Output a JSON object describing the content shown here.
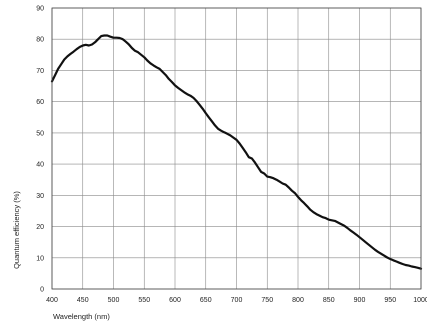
{
  "chart_data": {
    "type": "line",
    "title": "",
    "xlabel": "Wavelength (nm)",
    "ylabel": "Quantum efficiency (%)",
    "xlim": [
      400,
      1000
    ],
    "ylim": [
      0,
      90
    ],
    "x_ticks": [
      "400",
      "450",
      "500",
      "550",
      "600",
      "650",
      "700",
      "750",
      "800",
      "850",
      "900",
      "950",
      "1000"
    ],
    "y_ticks": [
      "0",
      "10",
      "20",
      "30",
      "40",
      "50",
      "60",
      "70",
      "80",
      "90"
    ],
    "grid": true,
    "line_color": "#111111",
    "series": [
      {
        "x": [
          400,
          405,
          410,
          415,
          420,
          425,
          430,
          435,
          440,
          445,
          450,
          455,
          460,
          465,
          470,
          475,
          480,
          485,
          490,
          495,
          500,
          505,
          510,
          515,
          520,
          525,
          530,
          535,
          540,
          545,
          550,
          555,
          560,
          565,
          570,
          575,
          580,
          585,
          590,
          595,
          600,
          605,
          610,
          615,
          620,
          625,
          630,
          635,
          640,
          645,
          650,
          655,
          660,
          665,
          670,
          675,
          680,
          685,
          690,
          695,
          700,
          705,
          710,
          715,
          720,
          725,
          730,
          735,
          740,
          745,
          750,
          755,
          760,
          765,
          770,
          775,
          780,
          785,
          790,
          795,
          800,
          805,
          810,
          815,
          820,
          825,
          830,
          835,
          840,
          845,
          850,
          855,
          860,
          865,
          870,
          875,
          880,
          885,
          890,
          895,
          900,
          905,
          910,
          915,
          920,
          925,
          930,
          935,
          940,
          945,
          950,
          955,
          960,
          965,
          970,
          975,
          980,
          985,
          990,
          995,
          1000
        ],
        "y": [
          66.5,
          68.5,
          70.5,
          72,
          73.5,
          74.5,
          75.3,
          76,
          76.8,
          77.5,
          78,
          78.2,
          78,
          78.3,
          79,
          80,
          81,
          81.2,
          81.2,
          80.8,
          80.5,
          80.5,
          80.4,
          80,
          79.2,
          78.3,
          77.2,
          76.3,
          75.8,
          75,
          74.2,
          73.2,
          72.3,
          71.6,
          71,
          70.5,
          69.5,
          68.5,
          67.3,
          66.3,
          65.2,
          64.4,
          63.7,
          63,
          62.4,
          61.9,
          61.2,
          60.2,
          59,
          57.7,
          56.3,
          55,
          53.7,
          52.4,
          51.3,
          50.7,
          50.2,
          49.7,
          49.2,
          48.5,
          47.8,
          46.6,
          45.2,
          43.8,
          42.2,
          41.8,
          40.5,
          39,
          37.5,
          37,
          36,
          35.8,
          35.5,
          35,
          34.4,
          33.8,
          33.4,
          32.5,
          31.5,
          30.7,
          29.5,
          28.4,
          27.5,
          26.5,
          25.4,
          24.6,
          24,
          23.5,
          23,
          22.7,
          22.2,
          22,
          21.8,
          21.3,
          20.8,
          20.3,
          19.6,
          18.8,
          18.1,
          17.4,
          16.6,
          15.8,
          15,
          14.2,
          13.4,
          12.6,
          11.9,
          11.3,
          10.7,
          10.1,
          9.6,
          9.2,
          8.8,
          8.4,
          8,
          7.7,
          7.5,
          7.2,
          7,
          6.8,
          6.5
        ]
      }
    ]
  }
}
